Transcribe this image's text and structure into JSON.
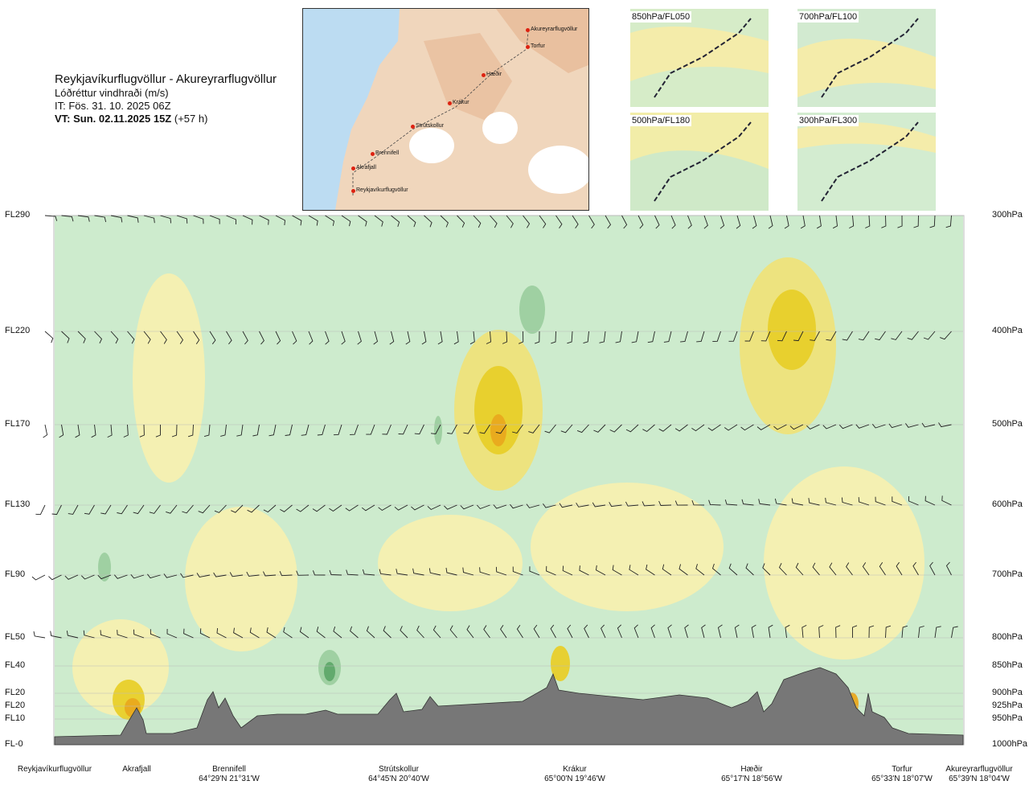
{
  "header": {
    "title": "Reykjavíkurflugvöllur - Akureyrarflugvöllur",
    "subtitle": "Lóðréttur vindhraði (m/s)",
    "issue": "IT: Fös. 31. 10. 2025 06Z",
    "valid_bold": "VT: Sun. 02.11.2025 15Z",
    "valid_lead": "(+57 h)"
  },
  "route_map": {
    "points": [
      "Akureyrarflugvöllur",
      "Torfur",
      "Hæðir",
      "Krákur",
      "Strútskollur",
      "Brennifell",
      "Akrafjall",
      "Reykjavíkurflugvöllur"
    ]
  },
  "minimaps": [
    {
      "label": "850hPa/FL050"
    },
    {
      "label": "700hPa/FL100"
    },
    {
      "label": "500hPa/FL180"
    },
    {
      "label": "300hPa/FL300"
    }
  ],
  "colors": {
    "strong_down": "#5fa86a",
    "mod_down": "#9ccf9f",
    "weak_down": "#cdebcd",
    "weak_up": "#f6f0b0",
    "mod_up": "#eee37a",
    "strong_up": "#e8cf2a",
    "max_up": "#e9a91e",
    "terrain": "#777777"
  },
  "chart_data": {
    "type": "heatmap",
    "title": "Lóðréttur vindhraði (m/s)",
    "flight_levels": [
      "FL290",
      "FL220",
      "FL170",
      "FL130",
      "FL90",
      "FL50",
      "FL40",
      "FL20",
      "FL20",
      "FL10",
      "FL-0"
    ],
    "pressure_levels": [
      "300hPa",
      "400hPa",
      "500hPa",
      "600hPa",
      "700hPa",
      "800hPa",
      "850hPa",
      "900hPa",
      "925hPa",
      "950hPa",
      "1000hPa"
    ],
    "pressure_values": [
      300,
      400,
      500,
      600,
      700,
      800,
      850,
      900,
      925,
      950,
      1000
    ],
    "route_points": [
      {
        "name": "Reykjavíkurflugvöllur",
        "coord": ""
      },
      {
        "name": "Akrafjall",
        "coord": ""
      },
      {
        "name": "Brennifell",
        "coord": "64°29'N 21°31'W"
      },
      {
        "name": "Strútskollur",
        "coord": "64°45'N 20°40'W"
      },
      {
        "name": "Krákur",
        "coord": "65°00'N 19°46'W"
      },
      {
        "name": "Hæðir",
        "coord": "65°17'N 18°56'W"
      },
      {
        "name": "Torfur",
        "coord": "65°33'N 18°07'W"
      },
      {
        "name": "Akureyrarflugvöllur",
        "coord": "65°39'N 18°04'W"
      }
    ],
    "legend": []
  }
}
